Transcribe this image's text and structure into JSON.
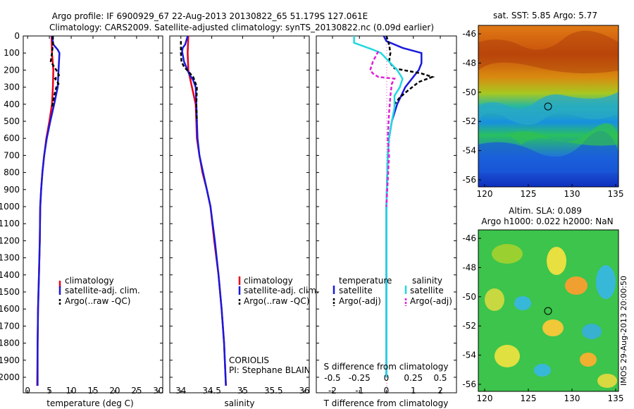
{
  "title": {
    "line1": "Argo profile: IF 6900929_67 22-Aug-2013 20130822_65 51.179S 127.061E",
    "line2": "Climatology: CARS2009. Satellite-adjusted climatology: synTS_20130822.nc (0.09d earlier)"
  },
  "colors": {
    "climatology": "#e8001a",
    "satellite": "#1a1adc",
    "argo": "#000000",
    "salinity_satellite": "#22d8e0",
    "salinity_argo": "#e020d8"
  },
  "temperature_panel": {
    "xlabel": "temperature (deg C)",
    "xticks": [
      "0",
      "5",
      "10",
      "15",
      "20",
      "25",
      "30"
    ],
    "legend": [
      "climatology",
      "satellite-adj. clim.",
      "Argo(..raw -QC)"
    ]
  },
  "salinity_panel": {
    "xlabel": "salinity",
    "xticks": [
      "34",
      "34.5",
      "35",
      "35.5",
      "36"
    ],
    "legend": [
      "climatology",
      "satellite-adj. clim.",
      "Argo(..raw -QC)"
    ],
    "source": "CORIOLIS",
    "pi": "PI: Stephane BLAIN"
  },
  "difference_panel": {
    "xlabel": "T difference from climatology",
    "top_label": "S difference from climatology",
    "xticks_T": [
      "-2",
      "-1",
      "0",
      "1",
      "2"
    ],
    "xticks_S": [
      "-0.5",
      "-0.25",
      "0",
      "0.25",
      "0.5"
    ],
    "legend_temperature_title": "temperature",
    "legend_salinity_title": "salinity",
    "legend_items": [
      "satellite",
      "Argo(-adj)",
      "satellite",
      "Argo(-adj)"
    ]
  },
  "depth_ticks": [
    "0",
    "100",
    "200",
    "300",
    "400",
    "500",
    "600",
    "700",
    "800",
    "900",
    "1000",
    "1100",
    "1200",
    "1300",
    "1400",
    "1500",
    "1600",
    "1700",
    "1800",
    "1900",
    "2000"
  ],
  "sst_map": {
    "title": "sat. SST: 5.85 Argo: 5.77",
    "yticks": [
      "-46",
      "-48",
      "-50",
      "-52",
      "-54",
      "-56"
    ],
    "xticks": [
      "120",
      "125",
      "130",
      "135"
    ]
  },
  "sla_map": {
    "title1": "Altim. SLA: 0.089",
    "title2": "Argo h1000: 0.022 h2000: NaN",
    "yticks": [
      "-46",
      "-48",
      "-50",
      "-52",
      "-54",
      "-56"
    ],
    "xticks": [
      "120",
      "125",
      "130",
      "135"
    ],
    "stamp": "IMOS 29-Aug-2013 20:00:50"
  },
  "chart_data": [
    {
      "type": "line",
      "title": "",
      "xlabel": "temperature (deg C)",
      "ylabel": "",
      "xlim": [
        -1,
        31
      ],
      "ylim": [
        2100,
        0
      ],
      "series": [
        {
          "name": "climatology",
          "points": [
            [
              5.5,
              0
            ],
            [
              5.6,
              100
            ],
            [
              5.9,
              200
            ],
            [
              5.8,
              300
            ],
            [
              5.6,
              400
            ],
            [
              5.0,
              500
            ],
            [
              4.3,
              600
            ],
            [
              3.8,
              700
            ],
            [
              3.4,
              800
            ],
            [
              3.1,
              900
            ],
            [
              2.9,
              1000
            ],
            [
              2.8,
              1200
            ],
            [
              2.6,
              1400
            ],
            [
              2.4,
              1600
            ],
            [
              2.3,
              1800
            ],
            [
              2.2,
              2050
            ]
          ]
        },
        {
          "name": "satellite-adj. clim.",
          "points": [
            [
              5.6,
              0
            ],
            [
              5.9,
              50
            ],
            [
              6.9,
              80
            ],
            [
              7.3,
              100
            ],
            [
              7.1,
              200
            ],
            [
              6.9,
              300
            ],
            [
              6.1,
              400
            ],
            [
              5.2,
              500
            ],
            [
              4.4,
              600
            ],
            [
              3.8,
              700
            ],
            [
              3.4,
              800
            ],
            [
              3.1,
              900
            ],
            [
              2.9,
              1000
            ],
            [
              2.8,
              1200
            ],
            [
              2.6,
              1400
            ],
            [
              2.4,
              1600
            ],
            [
              2.3,
              1800
            ],
            [
              2.3,
              2050
            ]
          ]
        },
        {
          "name": "Argo(..raw -QC)",
          "points": [
            [
              5.8,
              0
            ],
            [
              5.8,
              50
            ],
            [
              5.6,
              100
            ],
            [
              5.3,
              150
            ],
            [
              6.6,
              200
            ],
            [
              7.2,
              230
            ],
            [
              6.3,
              250
            ],
            [
              7.1,
              280
            ],
            [
              6.6,
              300
            ],
            [
              6.1,
              350
            ],
            [
              5.6,
              420
            ]
          ]
        }
      ]
    },
    {
      "type": "line",
      "title": "",
      "xlabel": "salinity",
      "ylabel": "",
      "xlim": [
        33.82,
        36.08
      ],
      "ylim": [
        2100,
        0
      ],
      "series": [
        {
          "name": "climatology",
          "points": [
            [
              34.12,
              0
            ],
            [
              34.11,
              100
            ],
            [
              34.12,
              200
            ],
            [
              34.18,
              300
            ],
            [
              34.24,
              400
            ],
            [
              34.25,
              500
            ],
            [
              34.26,
              600
            ],
            [
              34.3,
              700
            ],
            [
              34.35,
              800
            ],
            [
              34.42,
              900
            ],
            [
              34.48,
              1000
            ],
            [
              34.54,
              1200
            ],
            [
              34.61,
              1400
            ],
            [
              34.66,
              1600
            ],
            [
              34.7,
              1800
            ],
            [
              34.73,
              2050
            ]
          ]
        },
        {
          "name": "satellite-adj. clim.",
          "points": [
            [
              34.11,
              0
            ],
            [
              34.07,
              50
            ],
            [
              34.03,
              70
            ],
            [
              34.02,
              90
            ],
            [
              34.05,
              150
            ],
            [
              34.13,
              220
            ],
            [
              34.2,
              260
            ],
            [
              34.24,
              300
            ],
            [
              34.25,
              400
            ],
            [
              34.26,
              500
            ],
            [
              34.27,
              600
            ],
            [
              34.3,
              700
            ],
            [
              34.36,
              800
            ],
            [
              34.42,
              900
            ],
            [
              34.48,
              1000
            ],
            [
              34.55,
              1200
            ],
            [
              34.61,
              1400
            ],
            [
              34.66,
              1600
            ],
            [
              34.7,
              1800
            ],
            [
              34.73,
              2050
            ]
          ]
        },
        {
          "name": "Argo(..raw -QC)",
          "points": [
            [
              34.0,
              30
            ],
            [
              34.0,
              100
            ],
            [
              34.01,
              150
            ],
            [
              34.05,
              180
            ],
            [
              34.1,
              200
            ],
            [
              34.2,
              240
            ],
            [
              34.26,
              300
            ],
            [
              34.25,
              400
            ],
            [
              34.26,
              500
            ]
          ]
        }
      ]
    },
    {
      "type": "line",
      "title": "",
      "xlabel": "T difference from climatology",
      "ylabel": "",
      "xlim": [
        -2.6,
        2.6
      ],
      "ylim": [
        2100,
        0
      ],
      "series": [
        {
          "name": "temperature satellite",
          "points": [
            [
              -0.1,
              0
            ],
            [
              0.0,
              30
            ],
            [
              0.6,
              70
            ],
            [
              1.3,
              100
            ],
            [
              1.3,
              160
            ],
            [
              1.2,
              200
            ],
            [
              0.7,
              300
            ],
            [
              0.4,
              400
            ],
            [
              0.2,
              500
            ],
            [
              0.1,
              600
            ],
            [
              0.05,
              700
            ],
            [
              0.0,
              1000
            ],
            [
              0.0,
              1500
            ],
            [
              0.0,
              2000
            ]
          ]
        },
        {
          "name": "temperature Argo(-adj)",
          "points": [
            [
              0.0,
              0
            ],
            [
              0.1,
              50
            ],
            [
              0.15,
              100
            ],
            [
              0.1,
              150
            ],
            [
              0.3,
              190
            ],
            [
              1.3,
              220
            ],
            [
              1.7,
              240
            ],
            [
              1.2,
              270
            ],
            [
              0.8,
              320
            ],
            [
              0.5,
              360
            ],
            [
              0.3,
              400
            ]
          ]
        },
        {
          "name": "salinity satellite",
          "points": [
            [
              -1.2,
              0
            ],
            [
              -1.2,
              40
            ],
            [
              -0.5,
              80
            ],
            [
              -0.2,
              100
            ],
            [
              0.1,
              150
            ],
            [
              0.4,
              200
            ],
            [
              0.6,
              250
            ],
            [
              0.5,
              300
            ],
            [
              0.3,
              350
            ],
            [
              0.3,
              420
            ],
            [
              0.2,
              500
            ],
            [
              0.1,
              600
            ],
            [
              0.05,
              700
            ],
            [
              0.0,
              1000
            ],
            [
              0.0,
              1500
            ],
            [
              0.0,
              2000
            ]
          ]
        },
        {
          "name": "salinity Argo(-adj)",
          "points": [
            [
              -0.3,
              90
            ],
            [
              -0.5,
              150
            ],
            [
              -0.6,
              200
            ],
            [
              -0.5,
              220
            ],
            [
              -0.3,
              240
            ],
            [
              0.3,
              250
            ],
            [
              0.2,
              280
            ],
            [
              0.15,
              350
            ],
            [
              0.1,
              450
            ],
            [
              0.05,
              600
            ],
            [
              0.1,
              700
            ],
            [
              0.05,
              850
            ],
            [
              0.0,
              1000
            ]
          ]
        }
      ]
    }
  ]
}
